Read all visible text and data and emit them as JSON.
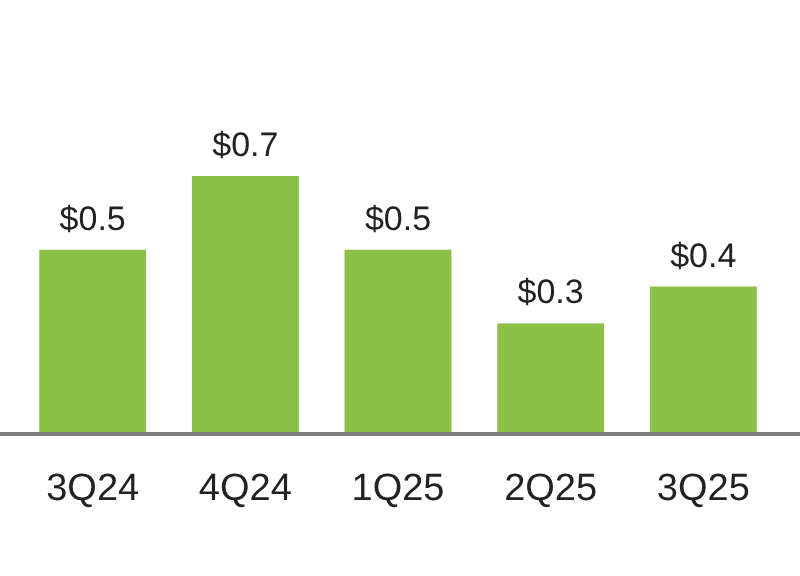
{
  "chart_data": {
    "type": "bar",
    "categories": [
      "3Q24",
      "4Q24",
      "1Q25",
      "2Q25",
      "3Q25"
    ],
    "values": [
      0.5,
      0.7,
      0.5,
      0.3,
      0.4
    ],
    "value_labels": [
      "$0.5",
      "$0.7",
      "$0.5",
      "$0.3",
      "$0.4"
    ],
    "color": "#8bbf45"
  }
}
